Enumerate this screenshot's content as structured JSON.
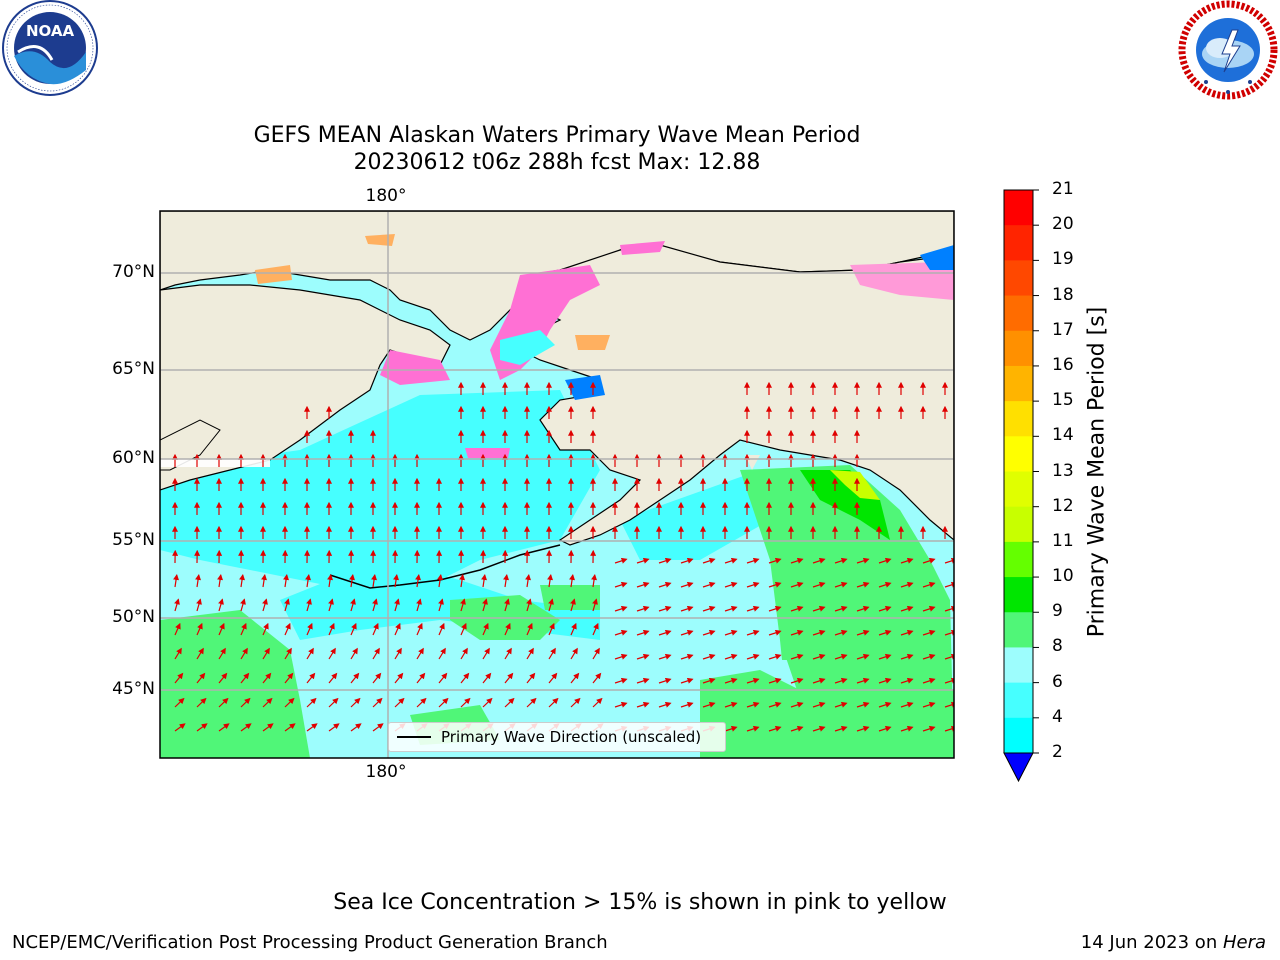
{
  "title": {
    "line1": "GEFS MEAN Alaskan Waters Primary Wave Mean Period",
    "line2": "20230612 t06z 288h fcst   Max: 12.88"
  },
  "map": {
    "lon_label_top": "180°",
    "lon_label_bottom": "180°",
    "lat_labels": [
      "70°N",
      "65°N",
      "60°N",
      "55°N",
      "50°N",
      "45°N"
    ],
    "legend_label": "Primary Wave Direction (unscaled)"
  },
  "colorbar": {
    "title": "Primary Wave Mean Period [s]",
    "ticks": [
      "21",
      "20",
      "19",
      "18",
      "17",
      "16",
      "15",
      "14",
      "13",
      "12",
      "11",
      "10",
      "9",
      "8",
      "6",
      "4",
      "2"
    ],
    "colors": [
      "#ff0000",
      "#ff2400",
      "#ff4800",
      "#ff6c00",
      "#ff9000",
      "#ffb400",
      "#ffe000",
      "#ffff00",
      "#e0ff00",
      "#c8ff00",
      "#64ff00",
      "#00e600",
      "#50f678",
      "#9dfdfd",
      "#46ffff",
      "#00ffff",
      "#0096ff",
      "#0080ff"
    ],
    "under_color": "#0000ff"
  },
  "colors": {
    "land": "#efecdc",
    "ocean_light": "#9dfdfd",
    "ocean_cyan": "#46ffff",
    "ocean_green": "#50f678",
    "ice_pink": "#ff70d4",
    "ice_orange": "#ffb060",
    "arrow": "#e00000",
    "grid": "#b0b0b0"
  },
  "logos": {
    "noaa_text": "NOAA",
    "nws_ring": "NATIONAL WEATHER SERVICE"
  },
  "note": "Sea Ice Concentration > 15% is shown in pink to yellow",
  "footer": {
    "left": "NCEP/EMC/Verification Post Processing Product Generation Branch",
    "right_prefix": "14 Jun 2023 on ",
    "right_host": "Hera"
  }
}
